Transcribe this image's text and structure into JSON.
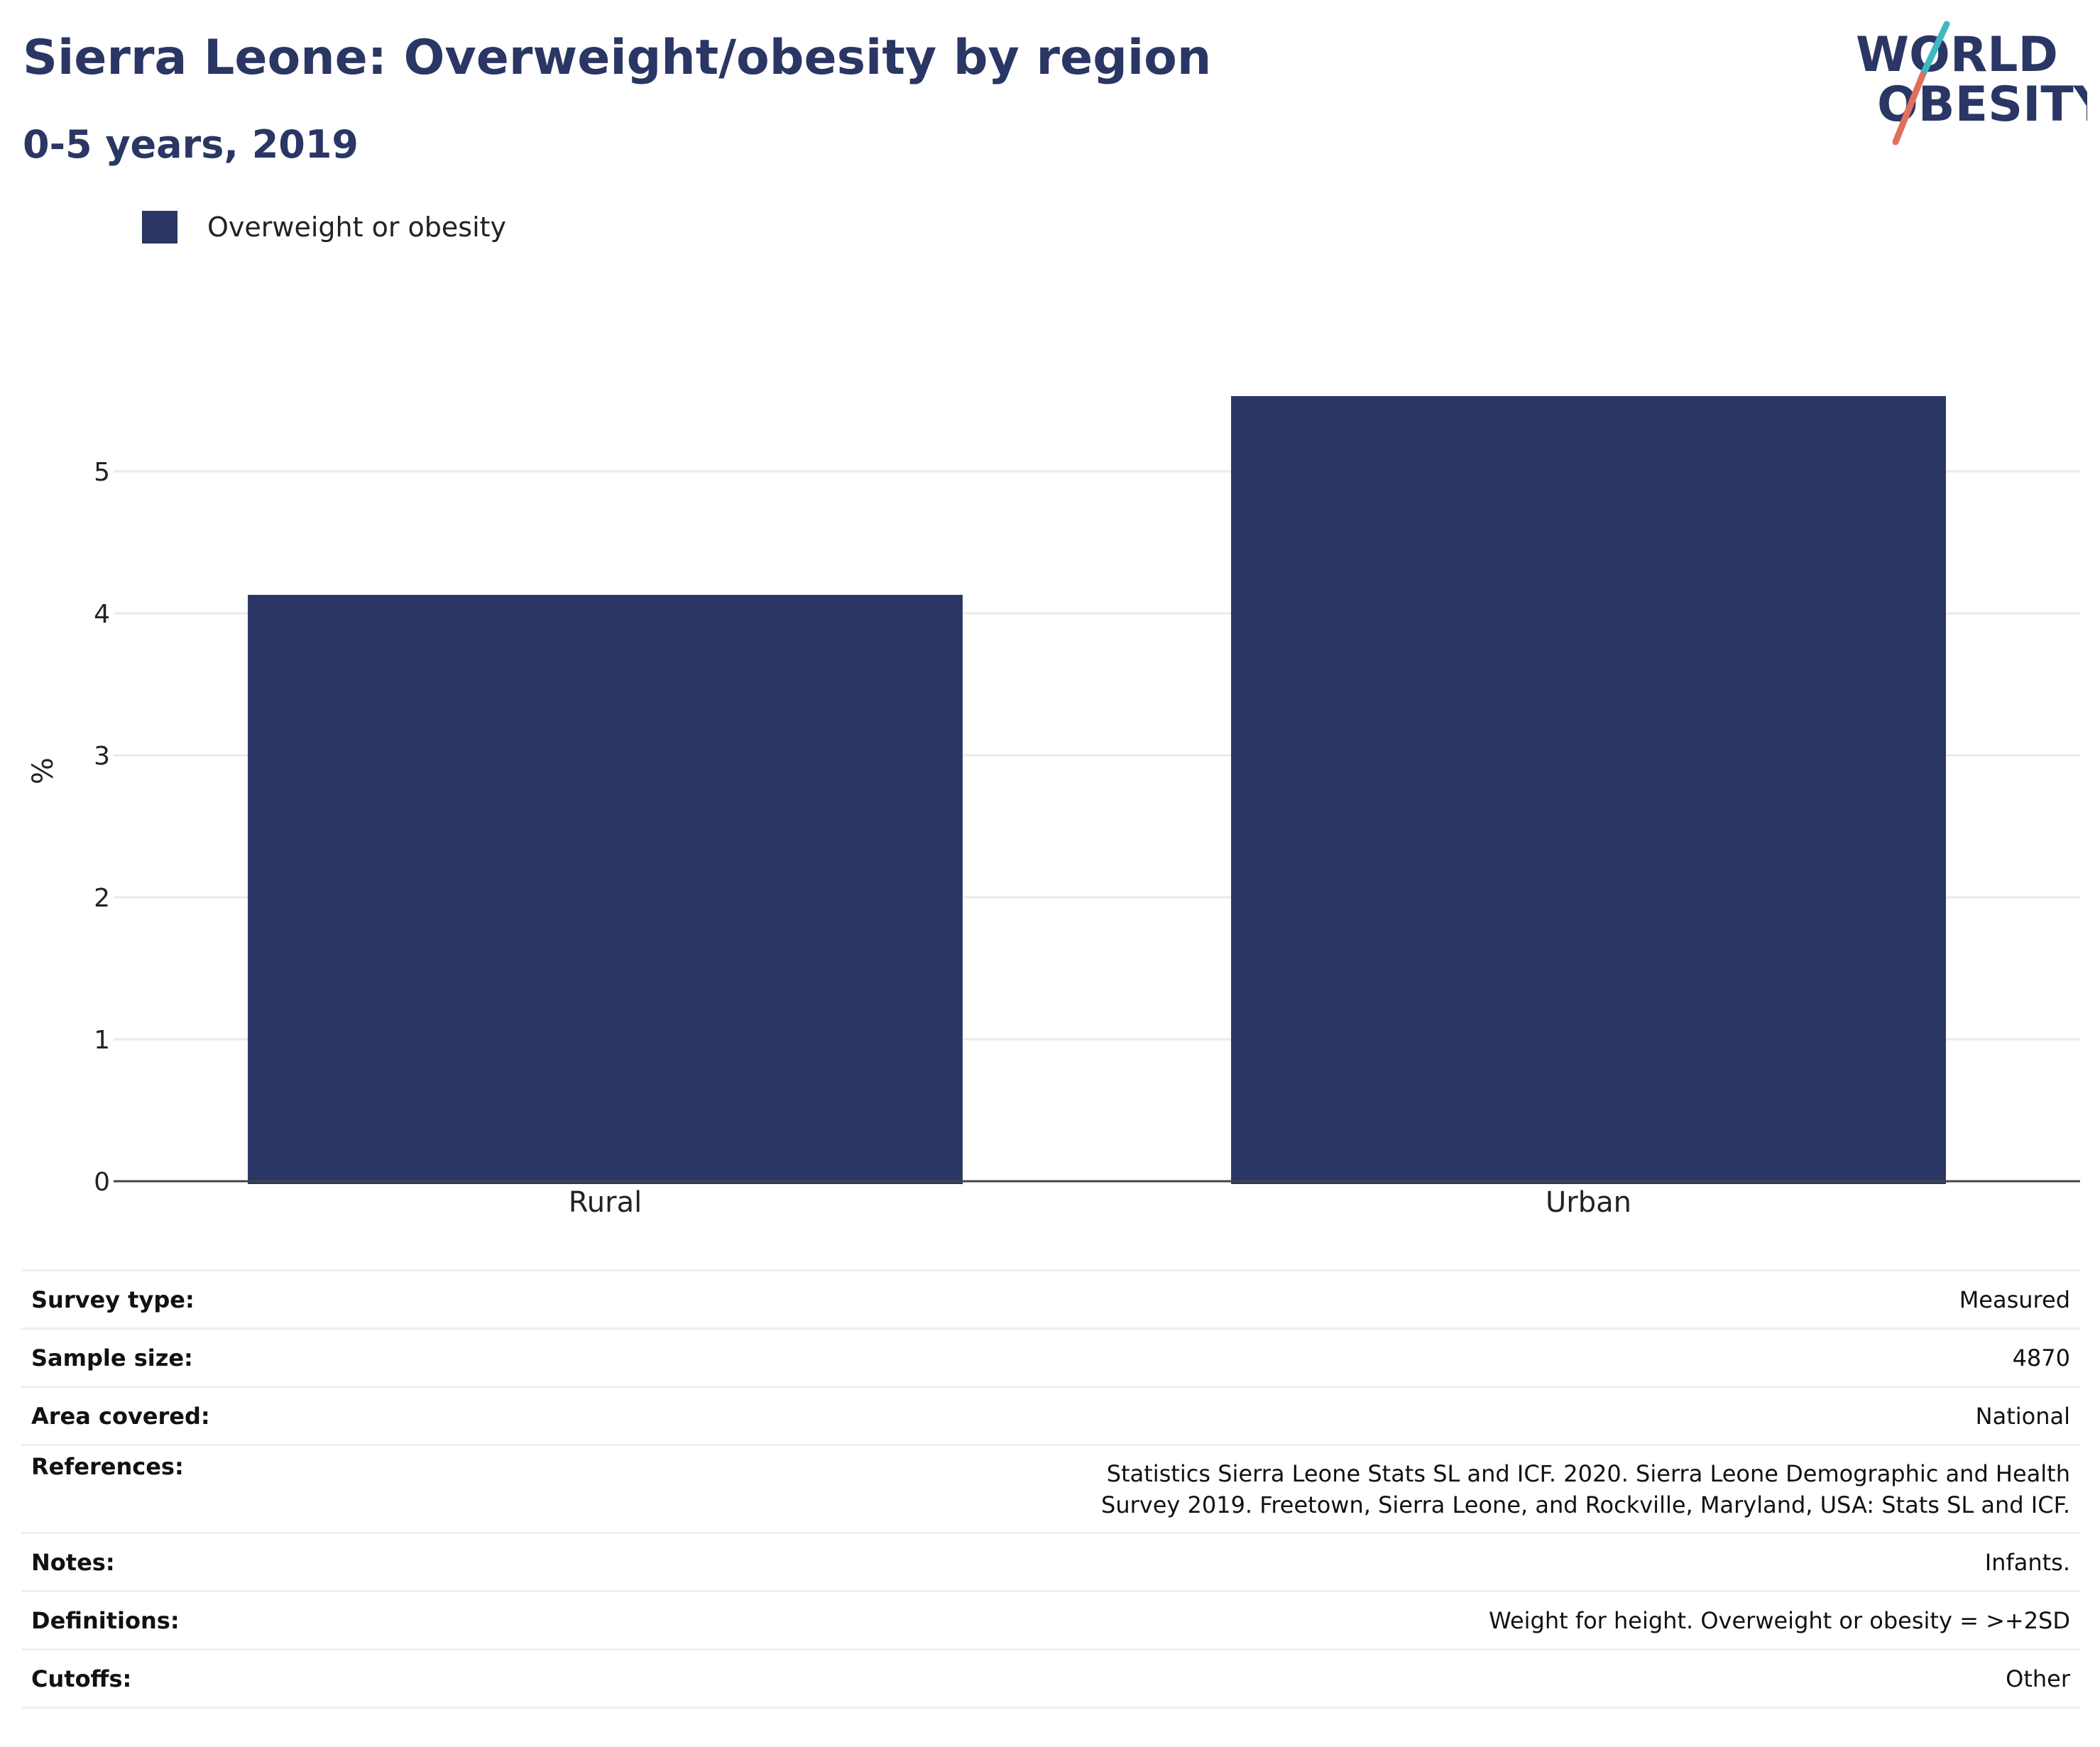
{
  "header": {
    "title": "Sierra Leone: Overweight/obesity by region",
    "subtitle": "0-5 years, 2019"
  },
  "logo": {
    "line1": "WORLD",
    "line2": "OBESITY",
    "colors": {
      "text": "#2a3663",
      "slash_teal": "#3fb8c2",
      "slash_coral": "#e0705c"
    }
  },
  "colors": {
    "bar": "#2a3663",
    "gridline": "#e8eaee",
    "axis_line": "#444444",
    "row_border": "#e9f1f4"
  },
  "chart_data": {
    "type": "bar",
    "title": "Sierra Leone: Overweight/obesity by region",
    "subtitle": "0-5 years, 2019",
    "categories": [
      "Rural",
      "Urban"
    ],
    "series": [
      {
        "name": "Overweight or obesity",
        "values": [
          4.13,
          5.53
        ],
        "color": "#2a3663"
      }
    ],
    "xlabel": "",
    "ylabel": "%",
    "ylim": [
      0,
      5.6
    ],
    "yticks": [
      0,
      1,
      2,
      3,
      4,
      5
    ],
    "grid": true,
    "legend_position": "top-left"
  },
  "meta_rows": [
    {
      "label": "Survey type:",
      "value": "Measured"
    },
    {
      "label": "Sample size:",
      "value": "4870"
    },
    {
      "label": "Area covered:",
      "value": "National"
    },
    {
      "label": "References:",
      "value": "Statistics Sierra Leone Stats SL and ICF. 2020. Sierra Leone Demographic and Health Survey 2019. Freetown, Sierra Leone, and Rockville, Maryland, USA: Stats SL and ICF."
    },
    {
      "label": "Notes:",
      "value": "Infants."
    },
    {
      "label": "Definitions:",
      "value": "Weight for height. Overweight or obesity = >+2SD"
    },
    {
      "label": "Cutoffs:",
      "value": "Other"
    }
  ]
}
